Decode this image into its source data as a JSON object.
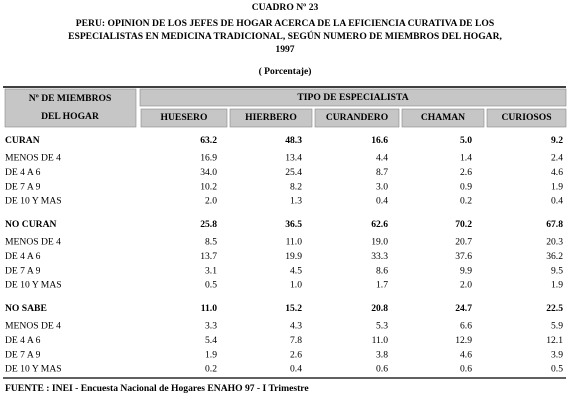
{
  "title": {
    "number": "CUADRO Nº 23",
    "lines": [
      "PERU: OPINION DE LOS JEFES DE HOGAR ACERCA DE LA EFICIENCIA CURATIVA DE LOS",
      "ESPECIALISTAS EN MEDICINA TRADICIONAL, SEGÚN NUMERO DE MIEMBROS DEL HOGAR,",
      "1997"
    ],
    "unit": "( Porcentaje)"
  },
  "table": {
    "row_header": [
      "Nº DE MIEMBROS",
      "DEL HOGAR"
    ],
    "group_header": "TIPO DE ESPECIALISTA",
    "columns": [
      "HUESERO",
      "HIERBERO",
      "CURANDERO",
      "CHAMAN",
      "CURIOSOS"
    ],
    "groups": [
      {
        "label": "CURAN",
        "values": [
          "63.2",
          "48.3",
          "16.6",
          "5.0",
          "9.2"
        ],
        "rows": [
          {
            "label": "MENOS DE 4",
            "values": [
              "16.9",
              "13.4",
              "4.4",
              "1.4",
              "2.4"
            ]
          },
          {
            "label": "DE 4 A 6",
            "values": [
              "34.0",
              "25.4",
              "8.7",
              "2.6",
              "4.6"
            ]
          },
          {
            "label": "DE 7 A 9",
            "values": [
              "10.2",
              "8.2",
              "3.0",
              "0.9",
              "1.9"
            ]
          },
          {
            "label": "DE 10 Y MAS",
            "values": [
              "2.0",
              "1.3",
              "0.4",
              "0.2",
              "0.4"
            ]
          }
        ]
      },
      {
        "label": "NO CURAN",
        "values": [
          "25.8",
          "36.5",
          "62.6",
          "70.2",
          "67.8"
        ],
        "rows": [
          {
            "label": "MENOS DE 4",
            "values": [
              "8.5",
              "11.0",
              "19.0",
              "20.7",
              "20.3"
            ]
          },
          {
            "label": "DE 4 A 6",
            "values": [
              "13.7",
              "19.9",
              "33.3",
              "37.6",
              "36.2"
            ]
          },
          {
            "label": "DE 7 A 9",
            "values": [
              "3.1",
              "4.5",
              "8.6",
              "9.9",
              "9.5"
            ]
          },
          {
            "label": "DE 10 Y MAS",
            "values": [
              "0.5",
              "1.0",
              "1.7",
              "2.0",
              "1.9"
            ]
          }
        ]
      },
      {
        "label": "NO SABE",
        "values": [
          "11.0",
          "15.2",
          "20.8",
          "24.7",
          "22.5"
        ],
        "rows": [
          {
            "label": "MENOS DE 4",
            "values": [
              "3.3",
              "4.3",
              "5.3",
              "6.6",
              "5.9"
            ]
          },
          {
            "label": "DE 4 A 6",
            "values": [
              "5.4",
              "7.8",
              "11.0",
              "12.9",
              "12.1"
            ]
          },
          {
            "label": "DE 7 A 9",
            "values": [
              "1.9",
              "2.6",
              "3.8",
              "4.6",
              "3.9"
            ]
          },
          {
            "label": "DE 10 Y MAS",
            "values": [
              "0.2",
              "0.4",
              "0.6",
              "0.6",
              "0.5"
            ]
          }
        ]
      }
    ]
  },
  "footer": "FUENTE : INEI - Encuesta Nacional de Hogares ENAHO 97 - I Trimestre"
}
